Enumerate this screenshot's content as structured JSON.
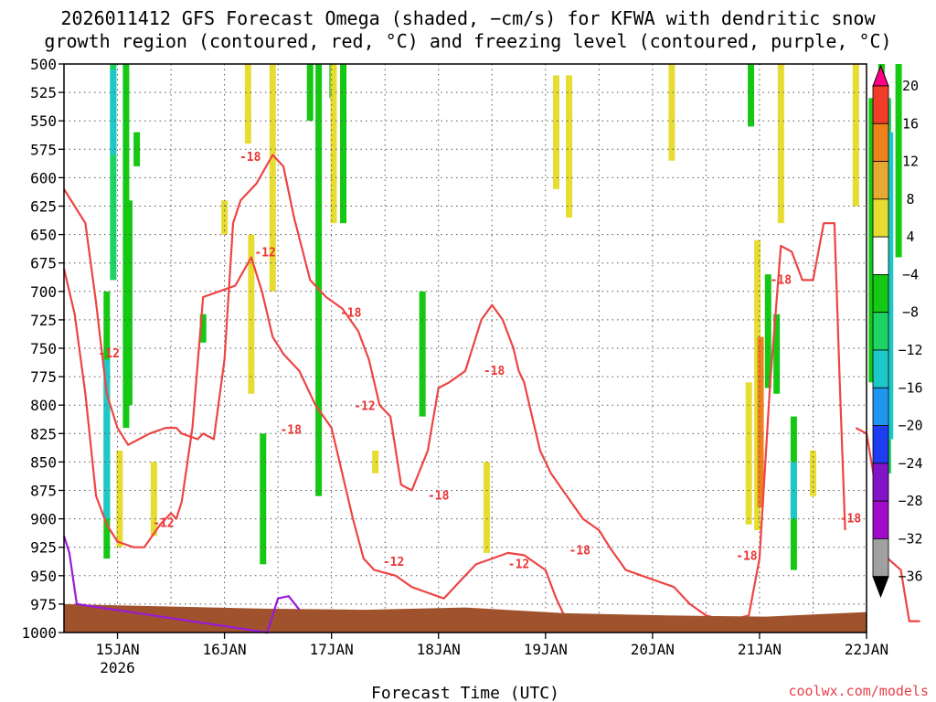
{
  "title_line1": "2026011412 GFS Forecast Omega (shaded, −cm/s) for KFWA with dendritic snow",
  "title_line2": "growth region (contoured, red, °C) and freezing level (contoured, purple, °C)",
  "credit": "coolwx.com/models",
  "colors": {
    "ground": "#a0522d",
    "dgz_contour": "#ee4444",
    "freezing_contour": "#9a1ad8",
    "grid": "#555555"
  },
  "chart_data": {
    "type": "heatmap",
    "title": "2026011412 GFS Forecast Omega (shaded, −cm/s) for KFWA with dendritic snow growth region (contoured, red, °C) and freezing level (contoured, purple, °C)",
    "xlabel": "Forecast Time (UTC)",
    "ylabel": "",
    "x_range": [
      "2026-01-14T12:00",
      "2026-01-22T00:00"
    ],
    "x_tick_labels": [
      "15JAN",
      "16JAN",
      "17JAN",
      "18JAN",
      "19JAN",
      "20JAN",
      "21JAN",
      "22JAN"
    ],
    "x_tick_sublabel": "2026",
    "y_ticks": [
      500,
      525,
      550,
      575,
      600,
      625,
      650,
      675,
      700,
      725,
      750,
      775,
      800,
      825,
      850,
      875,
      900,
      925,
      950,
      975,
      1000
    ],
    "y_range": [
      500,
      1000
    ],
    "y_inverted": true,
    "grid": true,
    "colorbar": {
      "levels": [
        "20",
        "16",
        "12",
        "8",
        "4",
        "−4",
        "−8",
        "−12",
        "−16",
        "−20",
        "−24",
        "−28",
        "−32",
        "−36"
      ],
      "colors": [
        "#ff0080",
        "#f03c28",
        "#f0821e",
        "#e6aa32",
        "#e6dc32",
        "#ffffff",
        "#14c814",
        "#1ed264",
        "#1ec8c8",
        "#1e96f0",
        "#1e3cf0",
        "#8214c8",
        "#a00ac8",
        "#a0a0a0",
        "#000000"
      ]
    },
    "omega_cells": [
      {
        "t": 0.46,
        "p0": 500,
        "p1": 690,
        "c": "#1ed264"
      },
      {
        "t": 0.46,
        "p0": 505,
        "p1": 580,
        "c": "#1ec8c8"
      },
      {
        "t": 0.58,
        "p0": 500,
        "p1": 820,
        "c": "#14c814"
      },
      {
        "t": 0.61,
        "p0": 620,
        "p1": 800,
        "c": "#14c814"
      },
      {
        "t": 0.4,
        "p0": 700,
        "p1": 935,
        "c": "#14c814"
      },
      {
        "t": 0.4,
        "p0": 760,
        "p1": 900,
        "c": "#1ec8c8"
      },
      {
        "t": 0.52,
        "p0": 840,
        "p1": 925,
        "c": "#e6dc32"
      },
      {
        "t": 0.68,
        "p0": 560,
        "p1": 590,
        "c": "#14c814"
      },
      {
        "t": 0.84,
        "p0": 850,
        "p1": 915,
        "c": "#e6dc32"
      },
      {
        "t": 1.3,
        "p0": 720,
        "p1": 745,
        "c": "#14c814"
      },
      {
        "t": 1.5,
        "p0": 620,
        "p1": 650,
        "c": "#e6dc32"
      },
      {
        "t": 1.72,
        "p0": 500,
        "p1": 570,
        "c": "#e6dc32"
      },
      {
        "t": 1.75,
        "p0": 650,
        "p1": 790,
        "c": "#e6dc32"
      },
      {
        "t": 1.86,
        "p0": 825,
        "p1": 940,
        "c": "#14c814"
      },
      {
        "t": 1.95,
        "p0": 500,
        "p1": 700,
        "c": "#e6dc32"
      },
      {
        "t": 2.3,
        "p0": 500,
        "p1": 550,
        "c": "#14c814"
      },
      {
        "t": 2.38,
        "p0": 500,
        "p1": 880,
        "c": "#14c814"
      },
      {
        "t": 2.51,
        "p0": 500,
        "p1": 530,
        "c": "#14c814"
      },
      {
        "t": 2.52,
        "p0": 500,
        "p1": 640,
        "c": "#e6dc32"
      },
      {
        "t": 2.61,
        "p0": 500,
        "p1": 640,
        "c": "#14c814"
      },
      {
        "t": 2.91,
        "p0": 840,
        "p1": 860,
        "c": "#e6dc32"
      },
      {
        "t": 3.35,
        "p0": 700,
        "p1": 810,
        "c": "#14c814"
      },
      {
        "t": 3.95,
        "p0": 850,
        "p1": 930,
        "c": "#e6dc32"
      },
      {
        "t": 4.6,
        "p0": 510,
        "p1": 610,
        "c": "#e6dc32"
      },
      {
        "t": 4.72,
        "p0": 510,
        "p1": 635,
        "c": "#e6dc32"
      },
      {
        "t": 5.68,
        "p0": 500,
        "p1": 585,
        "c": "#e6dc32"
      },
      {
        "t": 6.4,
        "p0": 780,
        "p1": 905,
        "c": "#e6dc32"
      },
      {
        "t": 6.42,
        "p0": 500,
        "p1": 555,
        "c": "#14c814"
      },
      {
        "t": 6.48,
        "p0": 655,
        "p1": 910,
        "c": "#e6dc32"
      },
      {
        "t": 6.51,
        "p0": 740,
        "p1": 890,
        "c": "#f0821e"
      },
      {
        "t": 6.58,
        "p0": 685,
        "p1": 785,
        "c": "#14c814"
      },
      {
        "t": 6.66,
        "p0": 720,
        "p1": 790,
        "c": "#14c814"
      },
      {
        "t": 6.7,
        "p0": 500,
        "p1": 640,
        "c": "#e6dc32"
      },
      {
        "t": 6.82,
        "p0": 810,
        "p1": 945,
        "c": "#14c814"
      },
      {
        "t": 6.82,
        "p0": 850,
        "p1": 900,
        "c": "#1ec8c8"
      },
      {
        "t": 7.0,
        "p0": 840,
        "p1": 880,
        "c": "#e6dc32"
      },
      {
        "t": 7.4,
        "p0": 500,
        "p1": 625,
        "c": "#e6dc32"
      },
      {
        "t": 7.55,
        "p0": 530,
        "p1": 780,
        "c": "#14c814"
      },
      {
        "t": 7.64,
        "p0": 500,
        "p1": 780,
        "c": "#14c814"
      },
      {
        "t": 7.7,
        "p0": 530,
        "p1": 860,
        "c": "#1ed264"
      },
      {
        "t": 7.72,
        "p0": 560,
        "p1": 830,
        "c": "#1ec8c8"
      },
      {
        "t": 7.8,
        "p0": 500,
        "p1": 670,
        "c": "#14c814"
      }
    ],
    "dgz_contour_labels": [
      {
        "text": "-18",
        "t": 1.24,
        "p": 582
      },
      {
        "text": "-12",
        "t": 1.38,
        "p": 666
      },
      {
        "text": "-18",
        "t": 2.18,
        "p": 719
      },
      {
        "text": "-12",
        "t": 2.31,
        "p": 801
      },
      {
        "text": "-18",
        "t": 3.52,
        "p": 770
      },
      {
        "text": "-12",
        "t": 2.58,
        "p": 938
      },
      {
        "text": "-18",
        "t": 1.62,
        "p": 822
      },
      {
        "text": "-12",
        "t": 0.43,
        "p": 904
      },
      {
        "text": "-12",
        "t": -0.08,
        "p": 755
      },
      {
        "text": "-18",
        "t": 3.0,
        "p": 880
      },
      {
        "text": "-18",
        "t": 4.32,
        "p": 928
      },
      {
        "text": "-12",
        "t": 3.75,
        "p": 940
      },
      {
        "text": "-18",
        "t": 6.2,
        "p": 690
      },
      {
        "text": "-18",
        "t": 6.85,
        "p": 900
      },
      {
        "text": "-18",
        "t": 5.88,
        "p": 933
      }
    ],
    "ground_top_p": [
      975,
      977,
      979,
      980,
      978,
      983,
      985,
      986,
      982
    ],
    "freezing_level_p": [
      [
        0.0,
        915
      ],
      [
        0.05,
        930
      ],
      [
        0.12,
        975
      ],
      [
        1.9,
        1000
      ],
      [
        2.0,
        970
      ],
      [
        2.1,
        968
      ],
      [
        2.2,
        980
      ]
    ]
  }
}
